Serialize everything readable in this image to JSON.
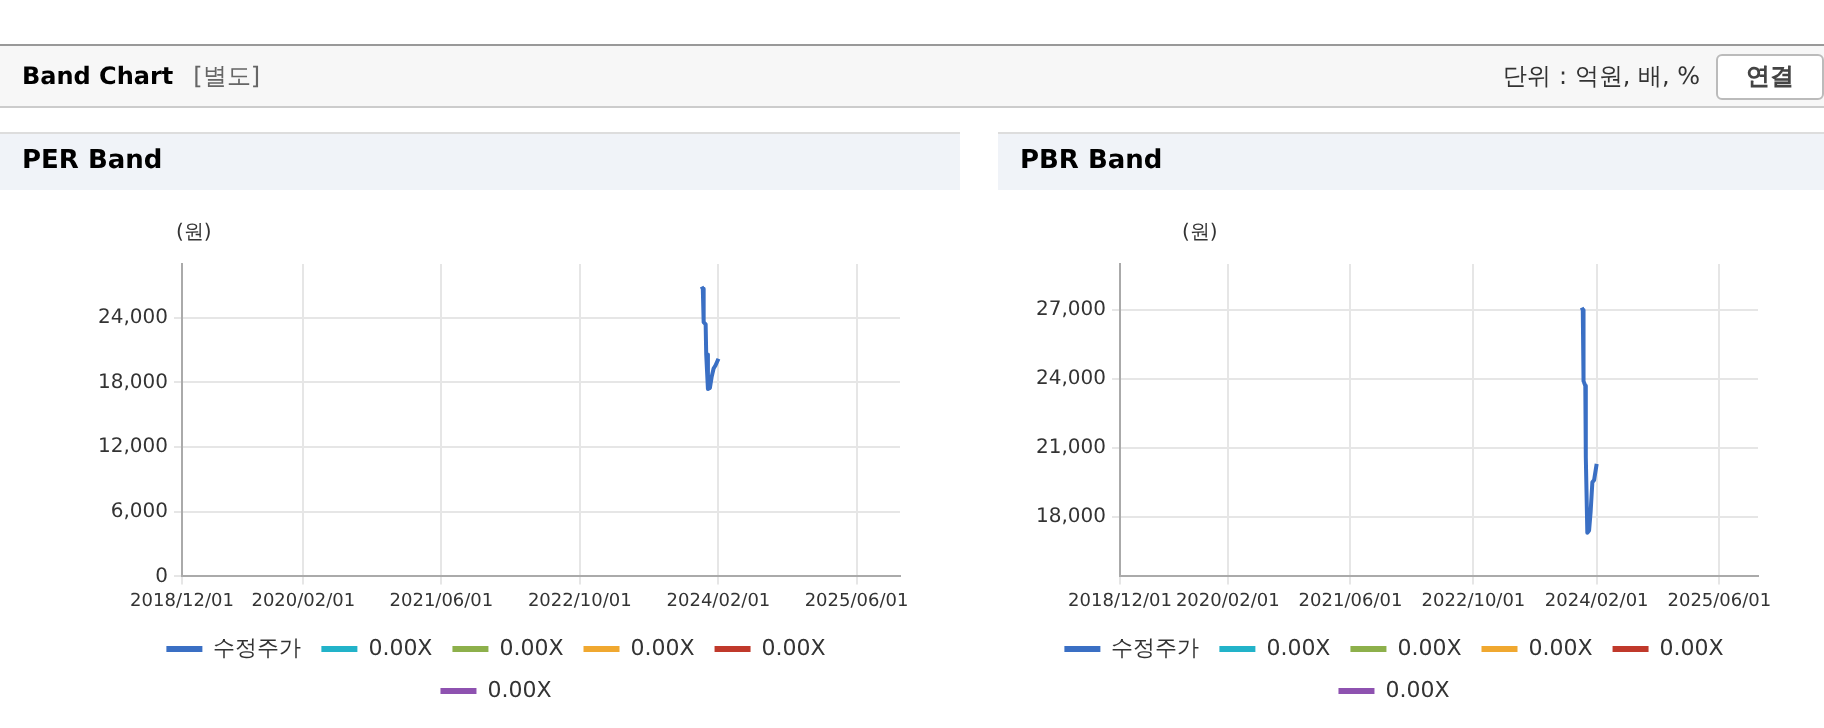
{
  "chart_data": [
    {
      "type": "line",
      "title": "PER Band",
      "ylabel": "(원)",
      "annotations": [
        "Band Chart",
        "[별도]",
        "단위 : 억원, 배, %",
        "연결"
      ],
      "series": [
        {
          "name": "수정주가",
          "color": "#3a6fc4",
          "x": [
            "2023-12-04",
            "2023-12-08",
            "2023-12-11",
            "2023-12-18",
            "2023-12-20",
            "2023-12-26",
            "2024-01-02",
            "2024-01-08",
            "2024-01-15",
            "2024-01-22",
            "2024-02-01"
          ],
          "values": [
            26900,
            26700,
            23600,
            23400,
            20600,
            17400,
            17500,
            18500,
            19300,
            19600,
            20200
          ]
        },
        {
          "name": "0.00X",
          "color": "#22b3c9"
        },
        {
          "name": "0.00X",
          "color": "#8db04b"
        },
        {
          "name": "0.00X",
          "color": "#f0a830"
        },
        {
          "name": "0.00X",
          "color": "#c0392b"
        },
        {
          "name": "0.00X",
          "color": "#8e52b0"
        }
      ],
      "xlim": [
        "2018-12-01",
        "2025-11-01"
      ],
      "xticks": [
        {
          "value": "2018-12-01",
          "label": "2018/12/01"
        },
        {
          "value": "2020-02-01",
          "label": "2020/02/01"
        },
        {
          "value": "2021-06-01",
          "label": "2021/06/01"
        },
        {
          "value": "2022-10-01",
          "label": "2022/10/01"
        },
        {
          "value": "2024-02-01",
          "label": "2024/02/01"
        },
        {
          "value": "2025-06-01",
          "label": "2025/06/01"
        }
      ],
      "ylim": [
        0,
        29000
      ],
      "yticks": [
        0,
        {
          "value": 6000,
          "label": "6,000"
        },
        {
          "value": 12000,
          "label": "12,000"
        },
        {
          "value": 18000,
          "label": "18,000"
        },
        {
          "value": 24000,
          "label": "24,000"
        }
      ],
      "grid": true,
      "legend": "bottom",
      "marker": "none",
      "line_style": "solid"
    },
    {
      "type": "line",
      "title": "PBR Band",
      "ylabel": "(원)",
      "series": [
        {
          "name": "수정주가",
          "color": "#3a6fc4",
          "x": [
            "2023-12-04",
            "2023-12-08",
            "2023-12-11",
            "2023-12-18",
            "2023-12-20",
            "2023-12-26",
            "2024-01-02",
            "2024-01-08",
            "2024-01-15",
            "2024-01-22",
            "2024-02-01"
          ],
          "values": [
            27100,
            27000,
            23900,
            23700,
            20600,
            17300,
            17400,
            18200,
            19500,
            19600,
            20300
          ]
        },
        {
          "name": "0.00X",
          "color": "#22b3c9"
        },
        {
          "name": "0.00X",
          "color": "#8db04b"
        },
        {
          "name": "0.00X",
          "color": "#f0a830"
        },
        {
          "name": "0.00X",
          "color": "#c0392b"
        },
        {
          "name": "0.00X",
          "color": "#8e52b0"
        }
      ],
      "xlim": [
        "2018-12-01",
        "2025-11-01"
      ],
      "xticks": [
        {
          "value": "2018-12-01",
          "label": "2018/12/01"
        },
        {
          "value": "2020-02-01",
          "label": "2020/02/01"
        },
        {
          "value": "2021-06-01",
          "label": "2021/06/01"
        },
        {
          "value": "2022-10-01",
          "label": "2022/10/01"
        },
        {
          "value": "2024-02-01",
          "label": "2024/02/01"
        },
        {
          "value": "2025-06-01",
          "label": "2025/06/01"
        }
      ],
      "ylim": [
        15400,
        29000
      ],
      "yticks": [
        {
          "value": 18000,
          "label": "18,000"
        },
        {
          "value": 21000,
          "label": "21,000"
        },
        {
          "value": 24000,
          "label": "24,000"
        },
        {
          "value": 27000,
          "label": "27,000"
        }
      ],
      "grid": true,
      "legend": "bottom",
      "marker": "none",
      "line_style": "solid"
    }
  ]
}
